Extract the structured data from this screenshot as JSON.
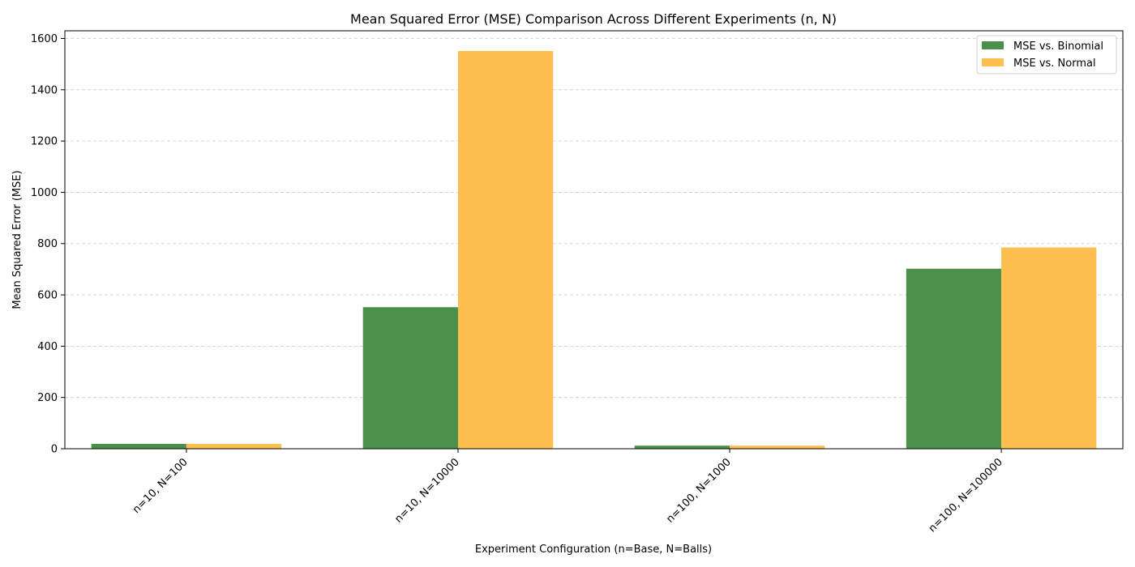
{
  "chart_data": {
    "type": "bar",
    "title": "Mean Squared Error (MSE) Comparison Across Different Experiments (n, N)",
    "xlabel": "Experiment Configuration (n=Base, N=Balls)",
    "ylabel": "Mean Squared Error (MSE)",
    "categories": [
      "n=10, N=100",
      "n=10, N=10000",
      "n=100, N=1000",
      "n=100, N=100000"
    ],
    "series": [
      {
        "name": "MSE vs. Binomial",
        "color": "#4a904a",
        "values": [
          19,
          552,
          12,
          702
        ]
      },
      {
        "name": "MSE vs. Normal",
        "color": "#fdbf4f",
        "values": [
          19,
          1551,
          12,
          785
        ]
      }
    ],
    "ylim": [
      0,
      1630
    ],
    "yticks": [
      0,
      200,
      400,
      600,
      800,
      1000,
      1200,
      1400,
      1600
    ],
    "grid": "y-dashed",
    "legend_position": "top-right"
  }
}
